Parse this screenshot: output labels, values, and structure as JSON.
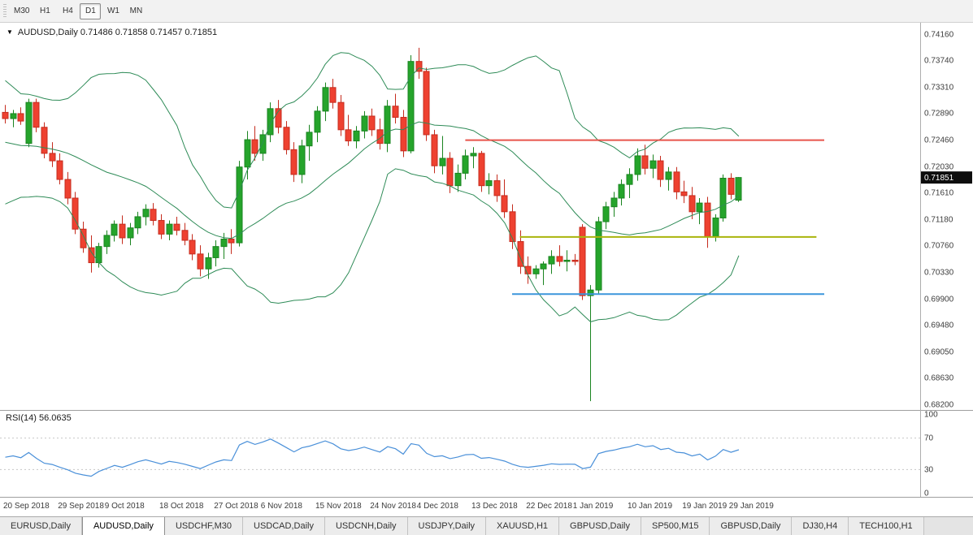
{
  "toolbar": {
    "timeframes": [
      "M30",
      "H1",
      "H4",
      "D1",
      "W1",
      "MN"
    ],
    "active_timeframe": "D1"
  },
  "chart_header": {
    "title": "AUDUSD,Daily 0.71486 0.71858 0.71457 0.71851"
  },
  "rsi_header": {
    "label": "RSI(14) 56.0635"
  },
  "price_badge": "0.71851",
  "bottom_tabs": {
    "active_index": 1,
    "items": [
      "EURUSD,Daily",
      "AUDUSD,Daily",
      "USDCHF,M30",
      "USDCAD,Daily",
      "USDCNH,Daily",
      "USDJPY,Daily",
      "XAUUSD,H1",
      "GBPUSD,Daily",
      "SP500,M15",
      "GBPUSD,Daily",
      "DJ30,H4",
      "TECH100,H1"
    ]
  },
  "colors": {
    "candle_up": "#25a42b",
    "candle_up_border": "#1a8420",
    "candle_down": "#ee4130",
    "candle_down_border": "#c52c1e",
    "bollinger": "#2e8b57",
    "rsi_line": "#4a90d9",
    "axis_text": "#3c3c3c",
    "badge_bg": "#0d0d0d",
    "badge_text": "#ffffff",
    "level_dash": "#c6c6c6",
    "separator": "#9f9f9f",
    "axis_line": "#adadad"
  },
  "chart_data": {
    "type": "candlestick",
    "title": "AUDUSD,Daily",
    "y_range": [
      0.682,
      0.7416
    ],
    "y_ticks": [
      0.7416,
      0.7374,
      0.7331,
      0.7289,
      0.7246,
      0.7203,
      0.7161,
      0.7118,
      0.7076,
      0.7033,
      0.699,
      0.6948,
      0.6905,
      0.6863,
      0.682
    ],
    "x_labels": [
      {
        "i": 0,
        "text": "20 Sep 2018"
      },
      {
        "i": 7,
        "text": "29 Sep 2018"
      },
      {
        "i": 13,
        "text": "9 Oct 2018"
      },
      {
        "i": 20,
        "text": "18 Oct 2018"
      },
      {
        "i": 27,
        "text": "27 Oct 2018"
      },
      {
        "i": 33,
        "text": "6 Nov 2018"
      },
      {
        "i": 40,
        "text": "15 Nov 2018"
      },
      {
        "i": 47,
        "text": "24 Nov 2018"
      },
      {
        "i": 53,
        "text": "4 Dec 2018"
      },
      {
        "i": 60,
        "text": "13 Dec 2018"
      },
      {
        "i": 67,
        "text": "22 Dec 2018"
      },
      {
        "i": 73,
        "text": "1 Jan 2019"
      },
      {
        "i": 80,
        "text": "10 Jan 2019"
      },
      {
        "i": 87,
        "text": "19 Jan 2019"
      },
      {
        "i": 93,
        "text": "29 Jan 2019"
      }
    ],
    "bollinger": {
      "period": 20,
      "deviation": 2
    },
    "pre_closes": [
      0.7352,
      0.734,
      0.733,
      0.731,
      0.7286,
      0.727,
      0.7255,
      0.7242,
      0.7228,
      0.7212,
      0.7196,
      0.7182,
      0.7194,
      0.7212,
      0.7186,
      0.7172,
      0.7192,
      0.7218,
      0.7246,
      0.7286
    ],
    "candles": [
      [
        0.729,
        0.7302,
        0.7272,
        0.728
      ],
      [
        0.728,
        0.7294,
        0.7266,
        0.7288
      ],
      [
        0.7288,
        0.7298,
        0.727,
        0.7276
      ],
      [
        0.724,
        0.7312,
        0.7234,
        0.7306
      ],
      [
        0.7306,
        0.7312,
        0.7258,
        0.7266
      ],
      [
        0.7266,
        0.7274,
        0.7216,
        0.7224
      ],
      [
        0.7224,
        0.7242,
        0.7202,
        0.7212
      ],
      [
        0.7212,
        0.7224,
        0.7174,
        0.7182
      ],
      [
        0.7182,
        0.7194,
        0.7142,
        0.7152
      ],
      [
        0.7152,
        0.7162,
        0.7094,
        0.7102
      ],
      [
        0.7102,
        0.7114,
        0.7064,
        0.7072
      ],
      [
        0.7072,
        0.7092,
        0.7032,
        0.7048
      ],
      [
        0.7048,
        0.708,
        0.704,
        0.7074
      ],
      [
        0.7074,
        0.71,
        0.7062,
        0.7092
      ],
      [
        0.7092,
        0.7116,
        0.7082,
        0.711
      ],
      [
        0.711,
        0.7124,
        0.7078,
        0.7088
      ],
      [
        0.7088,
        0.7112,
        0.7076,
        0.7104
      ],
      [
        0.7104,
        0.713,
        0.7094,
        0.7122
      ],
      [
        0.7122,
        0.7142,
        0.7108,
        0.7134
      ],
      [
        0.7134,
        0.7144,
        0.7108,
        0.7116
      ],
      [
        0.7116,
        0.7126,
        0.7086,
        0.7094
      ],
      [
        0.7094,
        0.7116,
        0.7084,
        0.711
      ],
      [
        0.711,
        0.7122,
        0.7092,
        0.71
      ],
      [
        0.71,
        0.7112,
        0.7076,
        0.7084
      ],
      [
        0.7084,
        0.7094,
        0.7052,
        0.7062
      ],
      [
        0.7062,
        0.7076,
        0.7026,
        0.7038
      ],
      [
        0.7038,
        0.7064,
        0.7022,
        0.7056
      ],
      [
        0.7056,
        0.7084,
        0.7042,
        0.7074
      ],
      [
        0.7074,
        0.7096,
        0.7054,
        0.7086
      ],
      [
        0.7086,
        0.7102,
        0.7062,
        0.708
      ],
      [
        0.708,
        0.7212,
        0.7074,
        0.7202
      ],
      [
        0.7202,
        0.726,
        0.7182,
        0.7246
      ],
      [
        0.7246,
        0.7268,
        0.7212,
        0.7224
      ],
      [
        0.7224,
        0.7262,
        0.7212,
        0.7254
      ],
      [
        0.7254,
        0.7306,
        0.7242,
        0.7296
      ],
      [
        0.7296,
        0.731,
        0.7256,
        0.7266
      ],
      [
        0.7266,
        0.7276,
        0.7222,
        0.723
      ],
      [
        0.723,
        0.7242,
        0.7178,
        0.719
      ],
      [
        0.719,
        0.7246,
        0.7176,
        0.7236
      ],
      [
        0.7236,
        0.727,
        0.7212,
        0.7258
      ],
      [
        0.7258,
        0.73,
        0.7242,
        0.7292
      ],
      [
        0.7292,
        0.7338,
        0.7276,
        0.733
      ],
      [
        0.733,
        0.7344,
        0.7296,
        0.7306
      ],
      [
        0.7306,
        0.7318,
        0.7252,
        0.7262
      ],
      [
        0.7262,
        0.7286,
        0.7236,
        0.7244
      ],
      [
        0.7244,
        0.7268,
        0.7232,
        0.726
      ],
      [
        0.726,
        0.7292,
        0.7248,
        0.7284
      ],
      [
        0.7284,
        0.7296,
        0.7252,
        0.7262
      ],
      [
        0.7262,
        0.728,
        0.723,
        0.724
      ],
      [
        0.724,
        0.731,
        0.7226,
        0.73
      ],
      [
        0.73,
        0.732,
        0.7272,
        0.7282
      ],
      [
        0.7282,
        0.7294,
        0.7218,
        0.7228
      ],
      [
        0.7228,
        0.7382,
        0.7224,
        0.7372
      ],
      [
        0.7372,
        0.7394,
        0.7344,
        0.7356
      ],
      [
        0.7356,
        0.7362,
        0.7244,
        0.7254
      ],
      [
        0.7254,
        0.7262,
        0.7192,
        0.7204
      ],
      [
        0.7204,
        0.7252,
        0.719,
        0.7216
      ],
      [
        0.7216,
        0.7226,
        0.716,
        0.7172
      ],
      [
        0.7172,
        0.7206,
        0.7162,
        0.7192
      ],
      [
        0.7192,
        0.723,
        0.7182,
        0.722
      ],
      [
        0.722,
        0.7234,
        0.72,
        0.7224
      ],
      [
        0.7224,
        0.7228,
        0.7162,
        0.7172
      ],
      [
        0.7172,
        0.7192,
        0.7158,
        0.718
      ],
      [
        0.718,
        0.719,
        0.7146,
        0.7156
      ],
      [
        0.7156,
        0.7182,
        0.712,
        0.713
      ],
      [
        0.713,
        0.7142,
        0.707,
        0.7082
      ],
      [
        0.7082,
        0.71,
        0.703,
        0.7042
      ],
      [
        0.7042,
        0.7058,
        0.7014,
        0.703
      ],
      [
        0.703,
        0.7044,
        0.7022,
        0.7038
      ],
      [
        0.7038,
        0.705,
        0.7012,
        0.7046
      ],
      [
        0.7046,
        0.7068,
        0.703,
        0.7058
      ],
      [
        0.7058,
        0.7076,
        0.7042,
        0.705
      ],
      [
        0.705,
        0.7068,
        0.7034,
        0.7052
      ],
      [
        0.7052,
        0.7062,
        0.7044,
        0.705
      ],
      [
        0.7105,
        0.711,
        0.6988,
        0.6995
      ],
      [
        0.6995,
        0.7012,
        0.6825,
        0.7004
      ],
      [
        0.7004,
        0.7122,
        0.6998,
        0.7114
      ],
      [
        0.7114,
        0.7146,
        0.7102,
        0.7138
      ],
      [
        0.7138,
        0.7162,
        0.7122,
        0.7152
      ],
      [
        0.7152,
        0.7182,
        0.714,
        0.7174
      ],
      [
        0.7174,
        0.72,
        0.7152,
        0.719
      ],
      [
        0.719,
        0.7232,
        0.718,
        0.722
      ],
      [
        0.722,
        0.7238,
        0.719,
        0.72
      ],
      [
        0.72,
        0.7222,
        0.7184,
        0.7212
      ],
      [
        0.7212,
        0.722,
        0.717,
        0.7182
      ],
      [
        0.7182,
        0.7202,
        0.7164,
        0.7194
      ],
      [
        0.7194,
        0.7202,
        0.715,
        0.7162
      ],
      [
        0.7162,
        0.718,
        0.7144,
        0.7156
      ],
      [
        0.7156,
        0.717,
        0.7118,
        0.713
      ],
      [
        0.713,
        0.7152,
        0.711,
        0.7144
      ],
      [
        0.7144,
        0.7154,
        0.7072,
        0.709
      ],
      [
        0.709,
        0.7126,
        0.7082,
        0.712
      ],
      [
        0.712,
        0.719,
        0.7114,
        0.7184
      ],
      [
        0.7184,
        0.7192,
        0.715,
        0.7158
      ],
      [
        0.71486,
        0.71858,
        0.71457,
        0.71851
      ]
    ],
    "hlines": [
      {
        "name": "resistance-line-red",
        "color": "#e8544b",
        "price": 0.7246,
        "i1": 59,
        "i2": 105,
        "width": 2
      },
      {
        "name": "support-line-olive",
        "color": "#a9b40c",
        "price": 0.709,
        "i1": 66,
        "i2": 104,
        "width": 2
      },
      {
        "name": "support-line-blue",
        "color": "#3c96dc",
        "price": 0.6998,
        "i1": 65,
        "i2": 105,
        "width": 2
      }
    ],
    "rsi": {
      "value": 56.0635,
      "range": [
        0,
        100
      ],
      "levels": [
        100,
        70,
        30,
        0
      ],
      "dashed_levels": [
        70,
        30
      ]
    },
    "current_price": 0.71851,
    "layout": {
      "x0": 6,
      "spacing": 9.6,
      "plot_right": 1132
    }
  }
}
